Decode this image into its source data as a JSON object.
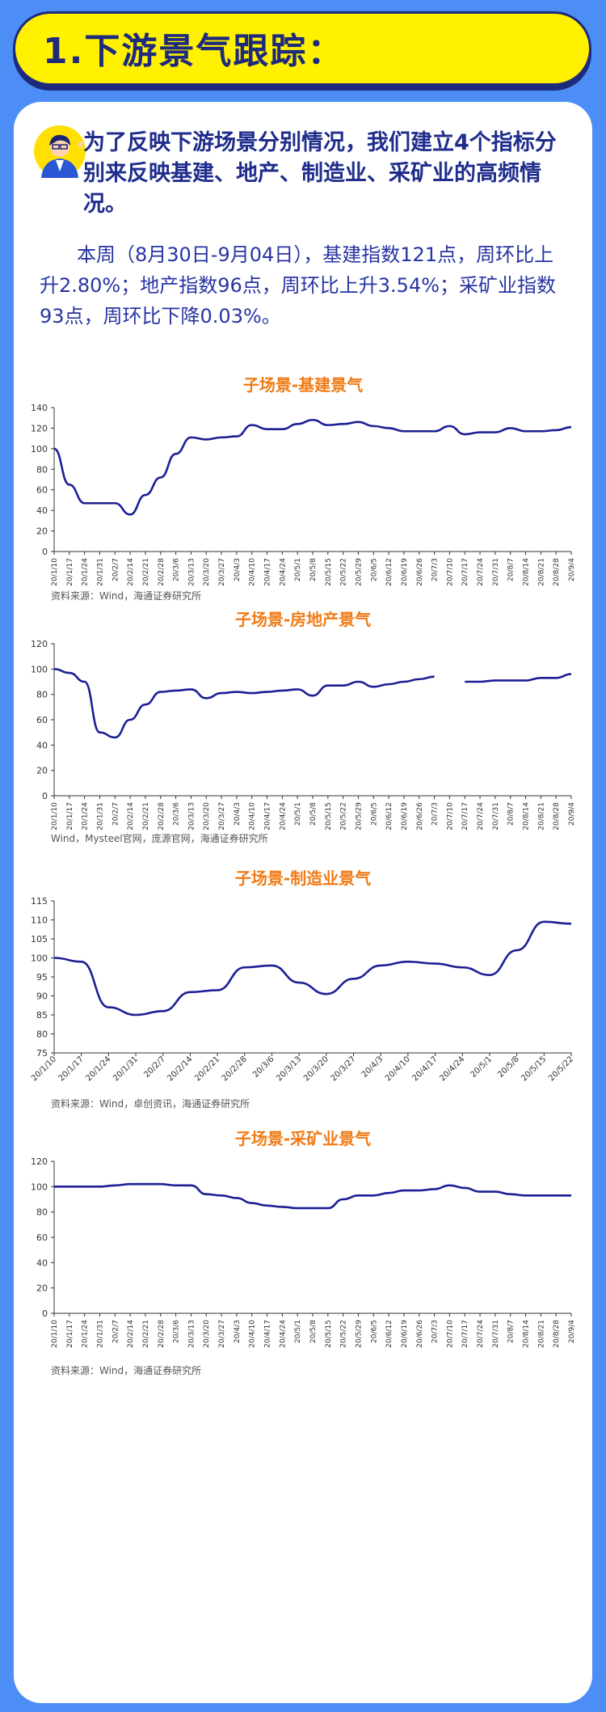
{
  "header": {
    "title": "1.下游景气跟踪："
  },
  "intro": {
    "headline": "为了反映下游场景分别情况，我们建立4个指标分别来反映基建、地产、制造业、采矿业的高频情况。",
    "paragraph": "本周（8月30日-9月04日），基建指数121点，周环比上升2.80%；地产指数96点，周环比上升3.54%；采矿业指数93点，周环比下降0.03%。"
  },
  "colors": {
    "line": "#1c1f94",
    "title": "#f07b16",
    "accent": "#fff100",
    "background": "#4d8df6"
  },
  "chart_data": [
    {
      "type": "line",
      "title": "子场景-基建景气",
      "source": "资料来源：Wind，海通证券研究所",
      "ylim": [
        0,
        140
      ],
      "yticks": [
        0,
        20,
        40,
        60,
        80,
        100,
        120,
        140
      ],
      "tick_labels": [
        "20/1/10",
        "20/1/17",
        "20/1/24",
        "20/1/31",
        "20/2/7",
        "20/2/14",
        "20/2/21",
        "20/2/28",
        "20/3/6",
        "20/3/13",
        "20/3/20",
        "20/3/27",
        "20/4/3",
        "20/4/10",
        "20/4/17",
        "20/4/24",
        "20/5/1",
        "20/5/8",
        "20/5/15",
        "20/5/22",
        "20/5/29",
        "20/6/5",
        "20/6/12",
        "20/6/19",
        "20/6/26",
        "20/7/3",
        "20/7/10",
        "20/7/17",
        "20/7/24",
        "20/7/31",
        "20/8/7",
        "20/8/14",
        "20/8/21",
        "20/8/28",
        "20/9/4"
      ],
      "values": [
        100,
        65,
        47,
        47,
        47,
        36,
        55,
        72,
        95,
        111,
        109,
        111,
        112,
        123,
        119,
        119,
        124,
        128,
        123,
        124,
        126,
        122,
        120,
        117,
        117,
        117,
        122,
        114,
        116,
        116,
        120,
        117,
        117,
        118,
        121
      ]
    },
    {
      "type": "line",
      "title": "子场景-房地产景气",
      "source": "Wind，Mysteel官网，庞源官网，海通证券研究所",
      "ylim": [
        0,
        120
      ],
      "yticks": [
        0,
        20,
        40,
        60,
        80,
        100,
        120
      ],
      "tick_labels": [
        "20/1/10",
        "20/1/17",
        "20/1/24",
        "20/1/31",
        "20/2/7",
        "20/2/14",
        "20/2/21",
        "20/2/28",
        "20/3/6",
        "20/3/13",
        "20/3/20",
        "20/3/27",
        "20/4/3",
        "20/4/10",
        "20/4/17",
        "20/4/24",
        "20/5/1",
        "20/5/8",
        "20/5/15",
        "20/5/22",
        "20/5/29",
        "20/6/5",
        "20/6/12",
        "20/6/19",
        "20/6/26",
        "20/7/3",
        "20/7/10",
        "20/7/17",
        "20/7/24",
        "20/7/31",
        "20/8/7",
        "20/8/14",
        "20/8/21",
        "20/8/28",
        "20/9/4"
      ],
      "values": [
        100,
        97,
        90,
        50,
        46,
        60,
        72,
        82,
        83,
        84,
        77,
        81,
        82,
        81,
        82,
        83,
        84,
        79,
        87,
        87,
        90,
        86,
        88,
        90,
        92,
        94,
        null,
        90,
        90,
        91,
        91,
        91,
        93,
        93,
        96
      ]
    },
    {
      "type": "line",
      "title": "子场景-制造业景气",
      "source": "资料来源：Wind，卓创资讯，海通证券研究所",
      "ylim": [
        75,
        115
      ],
      "yticks": [
        75,
        80,
        85,
        90,
        95,
        100,
        105,
        110,
        115
      ],
      "tick_labels": [
        "20/1/10",
        "20/1/17",
        "20/1/24",
        "20/1/31",
        "20/2/7",
        "20/2/14",
        "20/2/21",
        "20/2/28",
        "20/3/6",
        "20/3/13",
        "20/3/20",
        "20/3/27",
        "20/4/3",
        "20/4/10",
        "20/4/17",
        "20/4/24",
        "20/5/1",
        "20/5/8",
        "20/5/15",
        "20/5/22"
      ],
      "values": [
        100,
        99,
        87,
        85,
        86,
        91,
        91.5,
        97.5,
        98,
        93.5,
        90.5,
        94.5,
        98,
        99,
        98.5,
        97.5,
        95.5,
        102,
        109.5,
        109
      ]
    },
    {
      "type": "line",
      "title": "子场景-采矿业景气",
      "source": "资料来源：Wind，海通证券研究所",
      "ylim": [
        0,
        120
      ],
      "yticks": [
        0,
        20,
        40,
        60,
        80,
        100,
        120
      ],
      "tick_labels": [
        "20/1/10",
        "20/1/17",
        "20/1/24",
        "20/1/31",
        "20/2/7",
        "20/2/14",
        "20/2/21",
        "20/2/28",
        "20/3/6",
        "20/3/13",
        "20/3/20",
        "20/3/27",
        "20/4/3",
        "20/4/10",
        "20/4/17",
        "20/4/24",
        "20/5/1",
        "20/5/8",
        "20/5/15",
        "20/5/22",
        "20/5/29",
        "20/6/5",
        "20/6/12",
        "20/6/19",
        "20/6/26",
        "20/7/3",
        "20/7/10",
        "20/7/17",
        "20/7/24",
        "20/7/31",
        "20/8/7",
        "20/8/14",
        "20/8/21",
        "20/8/28",
        "20/9/4"
      ],
      "values": [
        100,
        100,
        100,
        100,
        101,
        102,
        102,
        102,
        101,
        101,
        94,
        93,
        91,
        87,
        85,
        84,
        83,
        83,
        83,
        90,
        93,
        93,
        95,
        97,
        97,
        98,
        101,
        99,
        96,
        96,
        94,
        93,
        93,
        93,
        93
      ]
    }
  ]
}
